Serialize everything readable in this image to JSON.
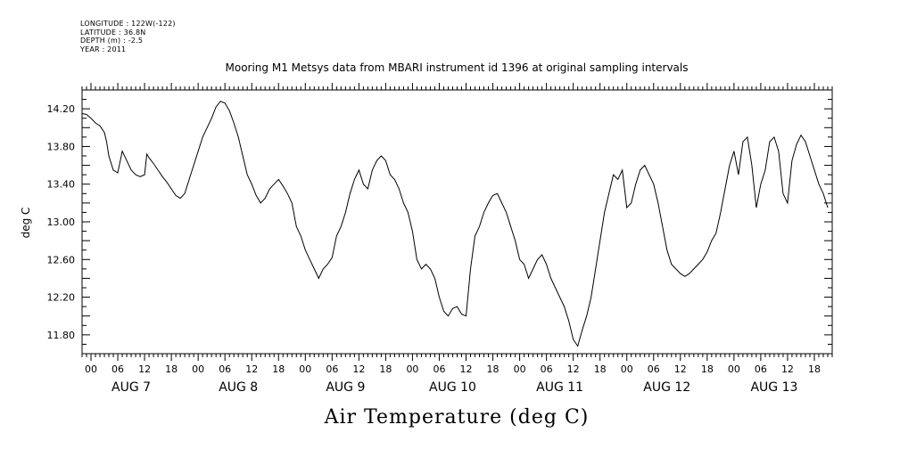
{
  "header": {
    "longitude": "LONGITUDE : 122W(-122)",
    "latitude": "LATITUDE : 36.8N",
    "depth": "DEPTH (m) : -2.5",
    "year": "YEAR : 2011"
  },
  "chart_data": {
    "type": "line",
    "title": "Mooring M1 Metsys data from MBARI instrument id 1396 at original sampling intervals",
    "ylabel": "deg C",
    "xlabel": "Air Temperature (deg C)",
    "ylim": [
      11.6,
      14.4
    ],
    "xlim_hours": [
      -2,
      166
    ],
    "yticks": [
      "14.20",
      "13.80",
      "13.40",
      "13.00",
      "12.60",
      "12.20",
      "11.80"
    ],
    "x_hour_labels": [
      "00",
      "06",
      "12",
      "18",
      "00",
      "06",
      "12",
      "18",
      "00",
      "06",
      "12",
      "18",
      "00",
      "06",
      "12",
      "18",
      "00",
      "06",
      "12",
      "18",
      "00",
      "06",
      "12",
      "18",
      "00",
      "06",
      "12",
      "18"
    ],
    "x_day_labels": [
      "AUG  7",
      "AUG  8",
      "AUG  9",
      "AUG 10",
      "AUG 11",
      "AUG 12",
      "AUG 13"
    ],
    "series": [
      {
        "color": "#000000",
        "points": [
          [
            -2,
            14.15
          ],
          [
            -1,
            14.14
          ],
          [
            0,
            14.1
          ],
          [
            1,
            14.05
          ],
          [
            2,
            14.02
          ],
          [
            3,
            13.95
          ],
          [
            3.5,
            13.85
          ],
          [
            4,
            13.7
          ],
          [
            5,
            13.55
          ],
          [
            6,
            13.52
          ],
          [
            7,
            13.75
          ],
          [
            8,
            13.65
          ],
          [
            9,
            13.55
          ],
          [
            10,
            13.5
          ],
          [
            11,
            13.48
          ],
          [
            12,
            13.5
          ],
          [
            12.5,
            13.72
          ],
          [
            13,
            13.68
          ],
          [
            14,
            13.62
          ],
          [
            15,
            13.55
          ],
          [
            16,
            13.48
          ],
          [
            17,
            13.42
          ],
          [
            18,
            13.35
          ],
          [
            19,
            13.28
          ],
          [
            20,
            13.25
          ],
          [
            21,
            13.3
          ],
          [
            22,
            13.45
          ],
          [
            23,
            13.6
          ],
          [
            24,
            13.75
          ],
          [
            25,
            13.9
          ],
          [
            26,
            14.0
          ],
          [
            27,
            14.1
          ],
          [
            28,
            14.22
          ],
          [
            29,
            14.28
          ],
          [
            30,
            14.26
          ],
          [
            31,
            14.18
          ],
          [
            32,
            14.05
          ],
          [
            33,
            13.9
          ],
          [
            34,
            13.7
          ],
          [
            35,
            13.5
          ],
          [
            36,
            13.4
          ],
          [
            37,
            13.28
          ],
          [
            38,
            13.2
          ],
          [
            39,
            13.25
          ],
          [
            40,
            13.35
          ],
          [
            41,
            13.4
          ],
          [
            42,
            13.45
          ],
          [
            43,
            13.38
          ],
          [
            44,
            13.3
          ],
          [
            45,
            13.2
          ],
          [
            46,
            12.95
          ],
          [
            47,
            12.85
          ],
          [
            48,
            12.7
          ],
          [
            49,
            12.6
          ],
          [
            50,
            12.5
          ],
          [
            51,
            12.4
          ],
          [
            52,
            12.5
          ],
          [
            53,
            12.55
          ],
          [
            54,
            12.62
          ],
          [
            55,
            12.85
          ],
          [
            56,
            12.95
          ],
          [
            57,
            13.1
          ],
          [
            58,
            13.3
          ],
          [
            59,
            13.45
          ],
          [
            60,
            13.55
          ],
          [
            61,
            13.4
          ],
          [
            62,
            13.35
          ],
          [
            63,
            13.55
          ],
          [
            64,
            13.65
          ],
          [
            65,
            13.7
          ],
          [
            66,
            13.65
          ],
          [
            67,
            13.5
          ],
          [
            68,
            13.45
          ],
          [
            69,
            13.35
          ],
          [
            70,
            13.2
          ],
          [
            71,
            13.1
          ],
          [
            72,
            12.9
          ],
          [
            73,
            12.6
          ],
          [
            74,
            12.5
          ],
          [
            75,
            12.55
          ],
          [
            76,
            12.5
          ],
          [
            77,
            12.4
          ],
          [
            78,
            12.2
          ],
          [
            79,
            12.05
          ],
          [
            80,
            12.0
          ],
          [
            81,
            12.08
          ],
          [
            82,
            12.1
          ],
          [
            83,
            12.02
          ],
          [
            84,
            12.0
          ],
          [
            85,
            12.5
          ],
          [
            86,
            12.85
          ],
          [
            87,
            12.95
          ],
          [
            88,
            13.1
          ],
          [
            89,
            13.2
          ],
          [
            90,
            13.28
          ],
          [
            91,
            13.3
          ],
          [
            92,
            13.2
          ],
          [
            93,
            13.1
          ],
          [
            94,
            12.95
          ],
          [
            95,
            12.8
          ],
          [
            96,
            12.6
          ],
          [
            97,
            12.55
          ],
          [
            98,
            12.4
          ],
          [
            99,
            12.5
          ],
          [
            100,
            12.6
          ],
          [
            101,
            12.65
          ],
          [
            102,
            12.55
          ],
          [
            103,
            12.4
          ],
          [
            104,
            12.3
          ],
          [
            105,
            12.2
          ],
          [
            106,
            12.1
          ],
          [
            107,
            11.95
          ],
          [
            108,
            11.75
          ],
          [
            109,
            11.68
          ],
          [
            110,
            11.85
          ],
          [
            111,
            12.0
          ],
          [
            112,
            12.2
          ],
          [
            113,
            12.5
          ],
          [
            114,
            12.8
          ],
          [
            115,
            13.1
          ],
          [
            116,
            13.3
          ],
          [
            117,
            13.5
          ],
          [
            118,
            13.45
          ],
          [
            119,
            13.55
          ],
          [
            120,
            13.15
          ],
          [
            121,
            13.2
          ],
          [
            122,
            13.4
          ],
          [
            123,
            13.55
          ],
          [
            124,
            13.6
          ],
          [
            125,
            13.5
          ],
          [
            126,
            13.4
          ],
          [
            127,
            13.2
          ],
          [
            128,
            12.95
          ],
          [
            129,
            12.7
          ],
          [
            130,
            12.55
          ],
          [
            131,
            12.5
          ],
          [
            132,
            12.45
          ],
          [
            133,
            12.42
          ],
          [
            134,
            12.45
          ],
          [
            135,
            12.5
          ],
          [
            136,
            12.55
          ],
          [
            137,
            12.6
          ],
          [
            138,
            12.68
          ],
          [
            139,
            12.8
          ],
          [
            140,
            12.88
          ],
          [
            141,
            13.1
          ],
          [
            142,
            13.35
          ],
          [
            143,
            13.6
          ],
          [
            144,
            13.75
          ],
          [
            145,
            13.5
          ],
          [
            146,
            13.85
          ],
          [
            147,
            13.9
          ],
          [
            148,
            13.6
          ],
          [
            149,
            13.15
          ],
          [
            150,
            13.4
          ],
          [
            151,
            13.55
          ],
          [
            152,
            13.85
          ],
          [
            153,
            13.9
          ],
          [
            154,
            13.75
          ],
          [
            155,
            13.3
          ],
          [
            156,
            13.2
          ],
          [
            157,
            13.65
          ],
          [
            158,
            13.82
          ],
          [
            159,
            13.92
          ],
          [
            160,
            13.85
          ],
          [
            161,
            13.7
          ],
          [
            162,
            13.55
          ],
          [
            163,
            13.4
          ],
          [
            164,
            13.3
          ],
          [
            165,
            13.15
          ]
        ]
      }
    ]
  }
}
